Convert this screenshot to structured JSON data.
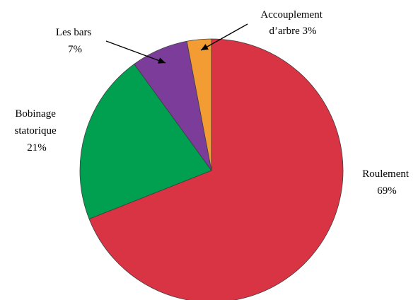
{
  "chart_data": {
    "type": "pie",
    "start": "12 o'clock",
    "direction": "clockwise",
    "slices": [
      {
        "label_lines": [
          "Roulement",
          "69%"
        ],
        "value": 69,
        "color": "#d93444"
      },
      {
        "label_lines": [
          "Bobinage",
          "statorique",
          "21%"
        ],
        "value": 21,
        "color": "#00a050"
      },
      {
        "label_lines": [
          "Les bars",
          "7%"
        ],
        "value": 7,
        "color": "#7b3c9a"
      },
      {
        "label_lines": [
          "Accouplement",
          "d’arbre 3%"
        ],
        "value": 3,
        "color": "#f39c33"
      }
    ]
  }
}
